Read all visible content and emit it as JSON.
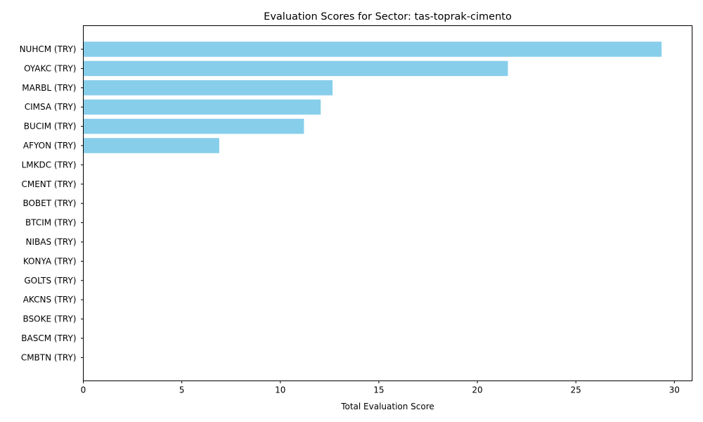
{
  "chart_data": {
    "type": "bar",
    "orientation": "horizontal",
    "title": "Evaluation Scores for Sector: tas-toprak-cimento",
    "xlabel": "Total Evaluation Score",
    "ylabel": "",
    "xlim": [
      0,
      30.9
    ],
    "xticks": [
      0,
      5,
      10,
      15,
      20,
      25,
      30
    ],
    "categories": [
      "NUHCM (TRY)",
      "OYAKC (TRY)",
      "MARBL (TRY)",
      "CIMSA (TRY)",
      "BUCIM (TRY)",
      "AFYON (TRY)",
      "LMKDC (TRY)",
      "CMENT (TRY)",
      "BOBET (TRY)",
      "BTCIM (TRY)",
      "NIBAS (TRY)",
      "KONYA (TRY)",
      "GOLTS (TRY)",
      "AKCNS (TRY)",
      "BSOKE (TRY)",
      "BASCM (TRY)",
      "CMBTN (TRY)"
    ],
    "values": [
      29.35,
      21.55,
      12.65,
      12.05,
      11.2,
      6.9,
      0,
      0,
      0,
      0,
      0,
      0,
      0,
      0,
      0,
      0,
      0
    ],
    "bar_color": "#87ceeb",
    "grid": false,
    "legend": "none"
  }
}
